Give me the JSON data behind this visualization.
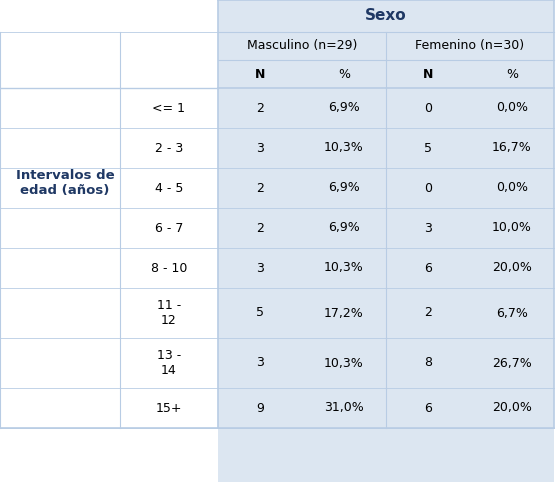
{
  "title": "Sexo",
  "row_header_main": "Intervalos de\nedad (años)",
  "col_group_headers": [
    "Masculino (n=29)",
    "Femenino (n=30)"
  ],
  "col_sub_headers": [
    "N",
    "%",
    "N",
    "%"
  ],
  "row_labels": [
    "<= 1",
    "2 - 3",
    "4 - 5",
    "6 - 7",
    "8 - 10",
    "11 -\n12",
    "13 -\n14",
    "15+"
  ],
  "data": [
    [
      "2",
      "6,9%",
      "0",
      "0,0%"
    ],
    [
      "3",
      "10,3%",
      "5",
      "16,7%"
    ],
    [
      "2",
      "6,9%",
      "0",
      "0,0%"
    ],
    [
      "2",
      "6,9%",
      "3",
      "10,0%"
    ],
    [
      "3",
      "10,3%",
      "6",
      "20,0%"
    ],
    [
      "5",
      "17,2%",
      "2",
      "6,7%"
    ],
    [
      "3",
      "10,3%",
      "8",
      "26,7%"
    ],
    [
      "9",
      "31,0%",
      "6",
      "20,0%"
    ]
  ],
  "bg_blue": "#dce6f1",
  "bg_white": "#ffffff",
  "line_color": "#b8cce4",
  "text_dark": "#1f3864",
  "text_black": "#000000",
  "fig_w": 5.56,
  "fig_h": 4.82,
  "dpi": 100
}
